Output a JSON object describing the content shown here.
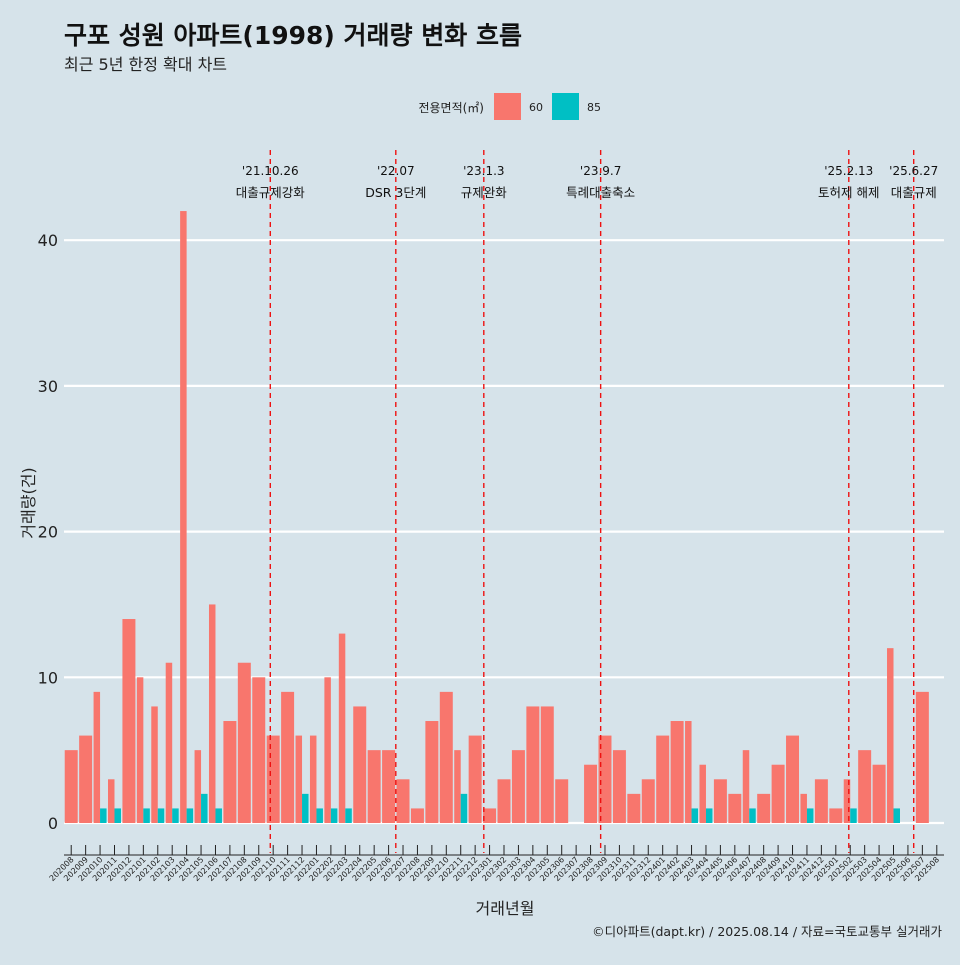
{
  "title": "구포 성원 아파트(1998) 거래량 변화 흐름",
  "subtitle": "최근 5년 한정 확대 차트",
  "caption": "©디아파트(dapt.kr) / 2025.08.14 / 자료=국토교통부 실거래가",
  "legend": {
    "title": "전용면적(㎡)",
    "items": [
      {
        "label": "60",
        "color": "#f8766d"
      },
      {
        "label": "85",
        "color": "#00bfc4"
      }
    ]
  },
  "chart_data": {
    "type": "bar",
    "title": "구포 성원 아파트(1998) 거래량 변화 흐름",
    "xlabel": "거래년월",
    "ylabel": "거래량(건)",
    "ylim": [
      -2,
      46
    ],
    "yticks": [
      0,
      10,
      20,
      30,
      40
    ],
    "grid": true,
    "legend_position": "top",
    "categories": [
      "202008",
      "202009",
      "202010",
      "202011",
      "202012",
      "202101",
      "202102",
      "202103",
      "202104",
      "202105",
      "202106",
      "202107",
      "202108",
      "202109",
      "202110",
      "202111",
      "202112",
      "202201",
      "202202",
      "202203",
      "202204",
      "202205",
      "202206",
      "202207",
      "202208",
      "202209",
      "202210",
      "202211",
      "202212",
      "202301",
      "202302",
      "202303",
      "202304",
      "202305",
      "202306",
      "202307",
      "202308",
      "202309",
      "202310",
      "202311",
      "202312",
      "202401",
      "202402",
      "202403",
      "202404",
      "202405",
      "202406",
      "202407",
      "202408",
      "202409",
      "202410",
      "202411",
      "202412",
      "202501",
      "202502",
      "202503",
      "202504",
      "202505",
      "202506",
      "202507",
      "202508"
    ],
    "series": [
      {
        "name": "60",
        "color": "#f8766d",
        "values": [
          5,
          6,
          9,
          3,
          14,
          10,
          8,
          11,
          42,
          5,
          15,
          7,
          11,
          10,
          6,
          9,
          6,
          6,
          10,
          13,
          8,
          5,
          5,
          3,
          1,
          7,
          9,
          5,
          6,
          1,
          3,
          5,
          8,
          8,
          3,
          0,
          4,
          6,
          5,
          2,
          3,
          6,
          7,
          7,
          4,
          3,
          2,
          5,
          2,
          4,
          6,
          2,
          3,
          1,
          3,
          5,
          4,
          12,
          0,
          9,
          0
        ]
      },
      {
        "name": "85",
        "color": "#00bfc4",
        "values": [
          0,
          0,
          1,
          1,
          0,
          1,
          1,
          1,
          1,
          2,
          1,
          0,
          0,
          0,
          0,
          0,
          2,
          1,
          1,
          1,
          0,
          0,
          0,
          0,
          0,
          0,
          0,
          2,
          0,
          0,
          0,
          0,
          0,
          0,
          0,
          0,
          0,
          0,
          0,
          0,
          0,
          0,
          0,
          1,
          1,
          0,
          0,
          1,
          0,
          0,
          0,
          1,
          0,
          0,
          1,
          0,
          0,
          1,
          0,
          0,
          0
        ]
      }
    ],
    "events": [
      {
        "date": "'21.10.26",
        "label": "대출규제강화",
        "month": "202110",
        "offset": 0.3
      },
      {
        "date": "'22.07",
        "label": "DSR 3단계",
        "month": "202207",
        "offset": 0.0
      },
      {
        "date": "'23.1.3",
        "label": "규제완화",
        "month": "202301",
        "offset": 0.1
      },
      {
        "date": "'23.9.7",
        "label": "특례대출축소",
        "month": "202309",
        "offset": 0.2
      },
      {
        "date": "'25.2.13",
        "label": "토허제 해제",
        "month": "202502",
        "offset": 0.4
      },
      {
        "date": "'25.6.27",
        "label": "대출규제",
        "month": "202506",
        "offset": 0.9
      }
    ]
  }
}
